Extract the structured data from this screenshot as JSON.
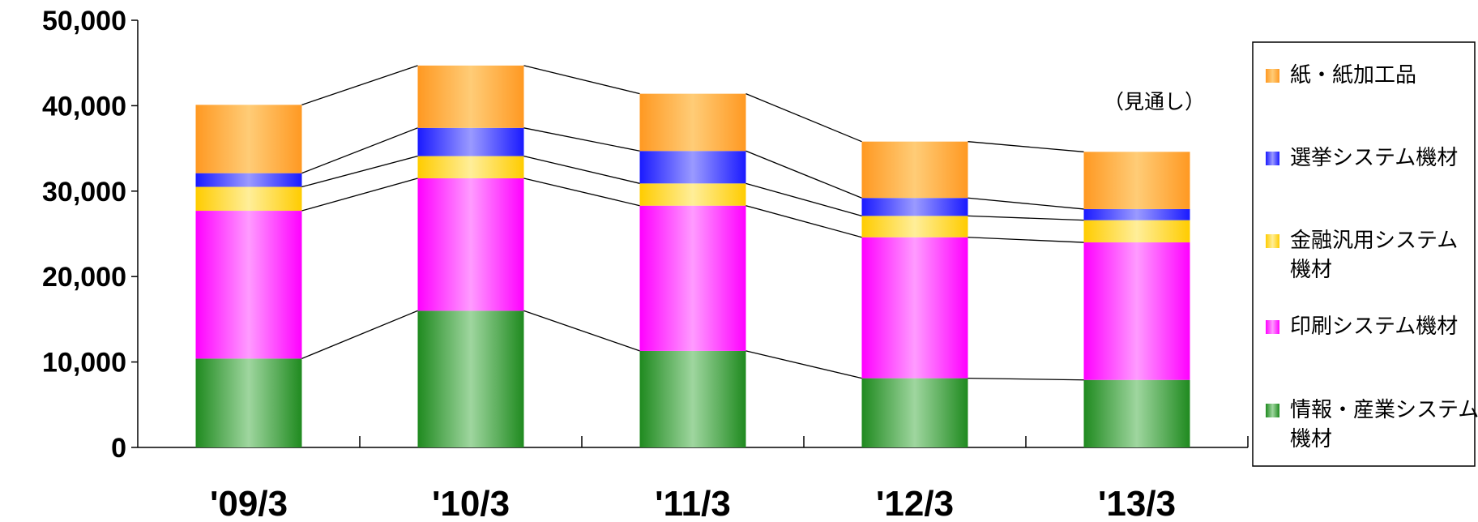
{
  "chart_data": {
    "type": "bar",
    "stacked": true,
    "categories": [
      "'09/3",
      "'10/3",
      "'11/3",
      "'12/3",
      "'13/3"
    ],
    "ylim": [
      0,
      50000
    ],
    "yticks": [
      "0",
      "10,000",
      "20,000",
      "30,000",
      "40,000",
      "50,000"
    ],
    "annotation": "（見通し）",
    "legend_position": "right",
    "series": [
      {
        "name": "情報・産業システム機材",
        "lines": [
          "情報・産業システム",
          "機材"
        ],
        "color": "#1f8a1f",
        "light": "#9fd69f",
        "values": [
          10400,
          16000,
          11300,
          8100,
          7900
        ]
      },
      {
        "name": "印刷システム機材",
        "lines": [
          "印刷システム機材"
        ],
        "color": "#ff00ff",
        "light": "#ff9bff",
        "values": [
          17300,
          15500,
          17000,
          16500,
          16100
        ]
      },
      {
        "name": "金融汎用システム機材",
        "lines": [
          "金融汎用システム",
          "機材"
        ],
        "color": "#ffcc00",
        "light": "#ffee99",
        "values": [
          2800,
          2600,
          2600,
          2500,
          2600
        ]
      },
      {
        "name": "選挙システム機材",
        "lines": [
          "選挙システム機材"
        ],
        "color": "#1a1aff",
        "light": "#9a9aff",
        "values": [
          1600,
          3300,
          3800,
          2100,
          1300
        ]
      },
      {
        "name": "紙・紙加工品",
        "lines": [
          "紙・紙加工品"
        ],
        "color": "#ff9922",
        "light": "#ffcc77",
        "values": [
          8000,
          7300,
          6700,
          6600,
          6700
        ]
      }
    ]
  }
}
